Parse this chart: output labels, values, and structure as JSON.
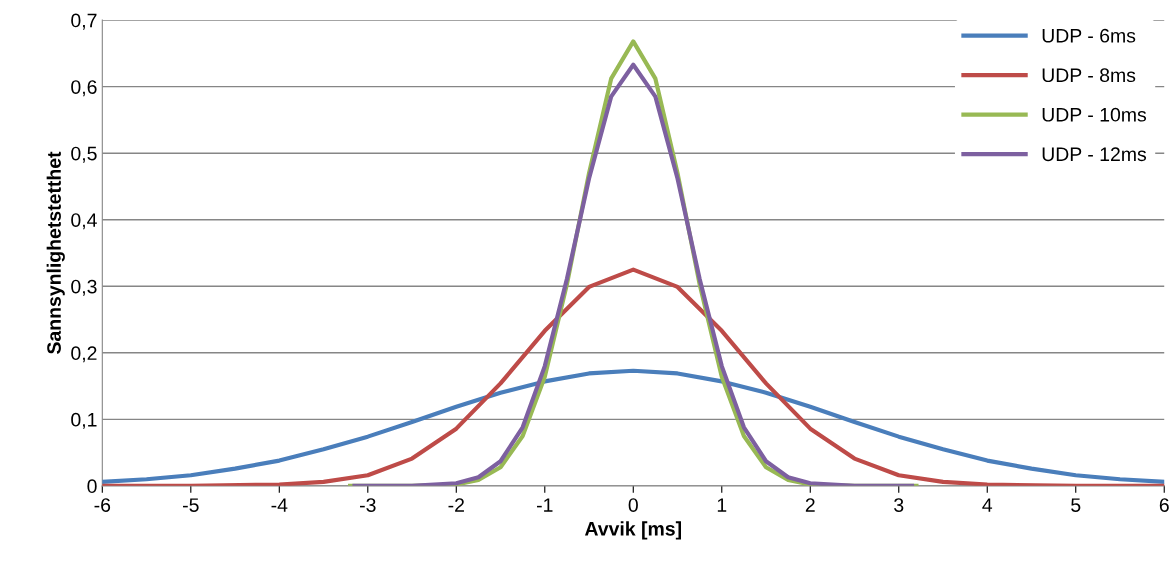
{
  "chart_data": {
    "type": "line",
    "xlabel": "Avvik [ms]",
    "ylabel": "Sannsynlighetstetthet",
    "xlim": [
      -6,
      6
    ],
    "ylim": [
      0,
      0.7
    ],
    "xticks": [
      -6,
      -5,
      -4,
      -3,
      -2,
      -1,
      0,
      1,
      2,
      3,
      4,
      5,
      6
    ],
    "yticks": [
      {
        "value": 0,
        "label": "0"
      },
      {
        "value": 0.1,
        "label": "0,1"
      },
      {
        "value": 0.2,
        "label": "0,2"
      },
      {
        "value": 0.3,
        "label": "0,3"
      },
      {
        "value": 0.4,
        "label": "0,4"
      },
      {
        "value": 0.5,
        "label": "0,5"
      },
      {
        "value": 0.6,
        "label": "0,6"
      },
      {
        "value": 0.7,
        "label": "0,7"
      }
    ],
    "grid": "y",
    "legend": "top right",
    "marker": "none",
    "line_style": "solid",
    "series": [
      {
        "name": "UDP - 6ms",
        "color": "#4a7ebb",
        "x": [
          -6,
          -5.5,
          -5,
          -4.5,
          -4,
          -3.5,
          -3,
          -2.5,
          -2,
          -1.5,
          -1,
          -0.5,
          0,
          0.5,
          1,
          1.5,
          2,
          2.5,
          3,
          3.5,
          4,
          4.5,
          5,
          5.5,
          6
        ],
        "values": [
          0.006,
          0.01,
          0.016,
          0.026,
          0.038,
          0.055,
          0.074,
          0.096,
          0.119,
          0.14,
          0.157,
          0.169,
          0.173,
          0.169,
          0.157,
          0.14,
          0.119,
          0.096,
          0.074,
          0.055,
          0.038,
          0.026,
          0.016,
          0.01,
          0.006
        ]
      },
      {
        "name": "UDP - 8ms",
        "color": "#be4b48",
        "x": [
          -6,
          -5,
          -4,
          -3.5,
          -3,
          -2.5,
          -2,
          -1.5,
          -1,
          -0.5,
          0,
          0.5,
          1,
          1.5,
          2,
          2.5,
          3,
          3.5,
          4,
          5,
          6
        ],
        "values": [
          0,
          0,
          0.002,
          0.006,
          0.016,
          0.041,
          0.086,
          0.154,
          0.233,
          0.299,
          0.325,
          0.299,
          0.233,
          0.154,
          0.086,
          0.041,
          0.016,
          0.006,
          0.002,
          0,
          0
        ]
      },
      {
        "name": "UDP - 10ms",
        "color": "#98b954",
        "x": [
          -3.2,
          -2.5,
          -2,
          -1.75,
          -1.5,
          -1.25,
          -1,
          -0.75,
          -0.5,
          -0.25,
          0,
          0.25,
          0.5,
          0.75,
          1,
          1.25,
          1.5,
          1.75,
          2,
          2.5,
          3.2
        ],
        "values": [
          0,
          0,
          0.002,
          0.009,
          0.028,
          0.075,
          0.164,
          0.303,
          0.47,
          0.612,
          0.668,
          0.612,
          0.47,
          0.303,
          0.164,
          0.075,
          0.028,
          0.009,
          0.002,
          0,
          0
        ]
      },
      {
        "name": "UDP - 12ms",
        "color": "#7d60a0",
        "x": [
          -3.15,
          -2.5,
          -2,
          -1.75,
          -1.5,
          -1.25,
          -1,
          -0.75,
          -0.5,
          -0.25,
          0,
          0.25,
          0.5,
          0.75,
          1,
          1.25,
          1.5,
          1.75,
          2,
          2.5,
          3.15
        ],
        "values": [
          0,
          0,
          0.004,
          0.013,
          0.037,
          0.088,
          0.18,
          0.311,
          0.462,
          0.585,
          0.633,
          0.585,
          0.462,
          0.311,
          0.18,
          0.088,
          0.037,
          0.013,
          0.004,
          0,
          0
        ]
      }
    ]
  }
}
